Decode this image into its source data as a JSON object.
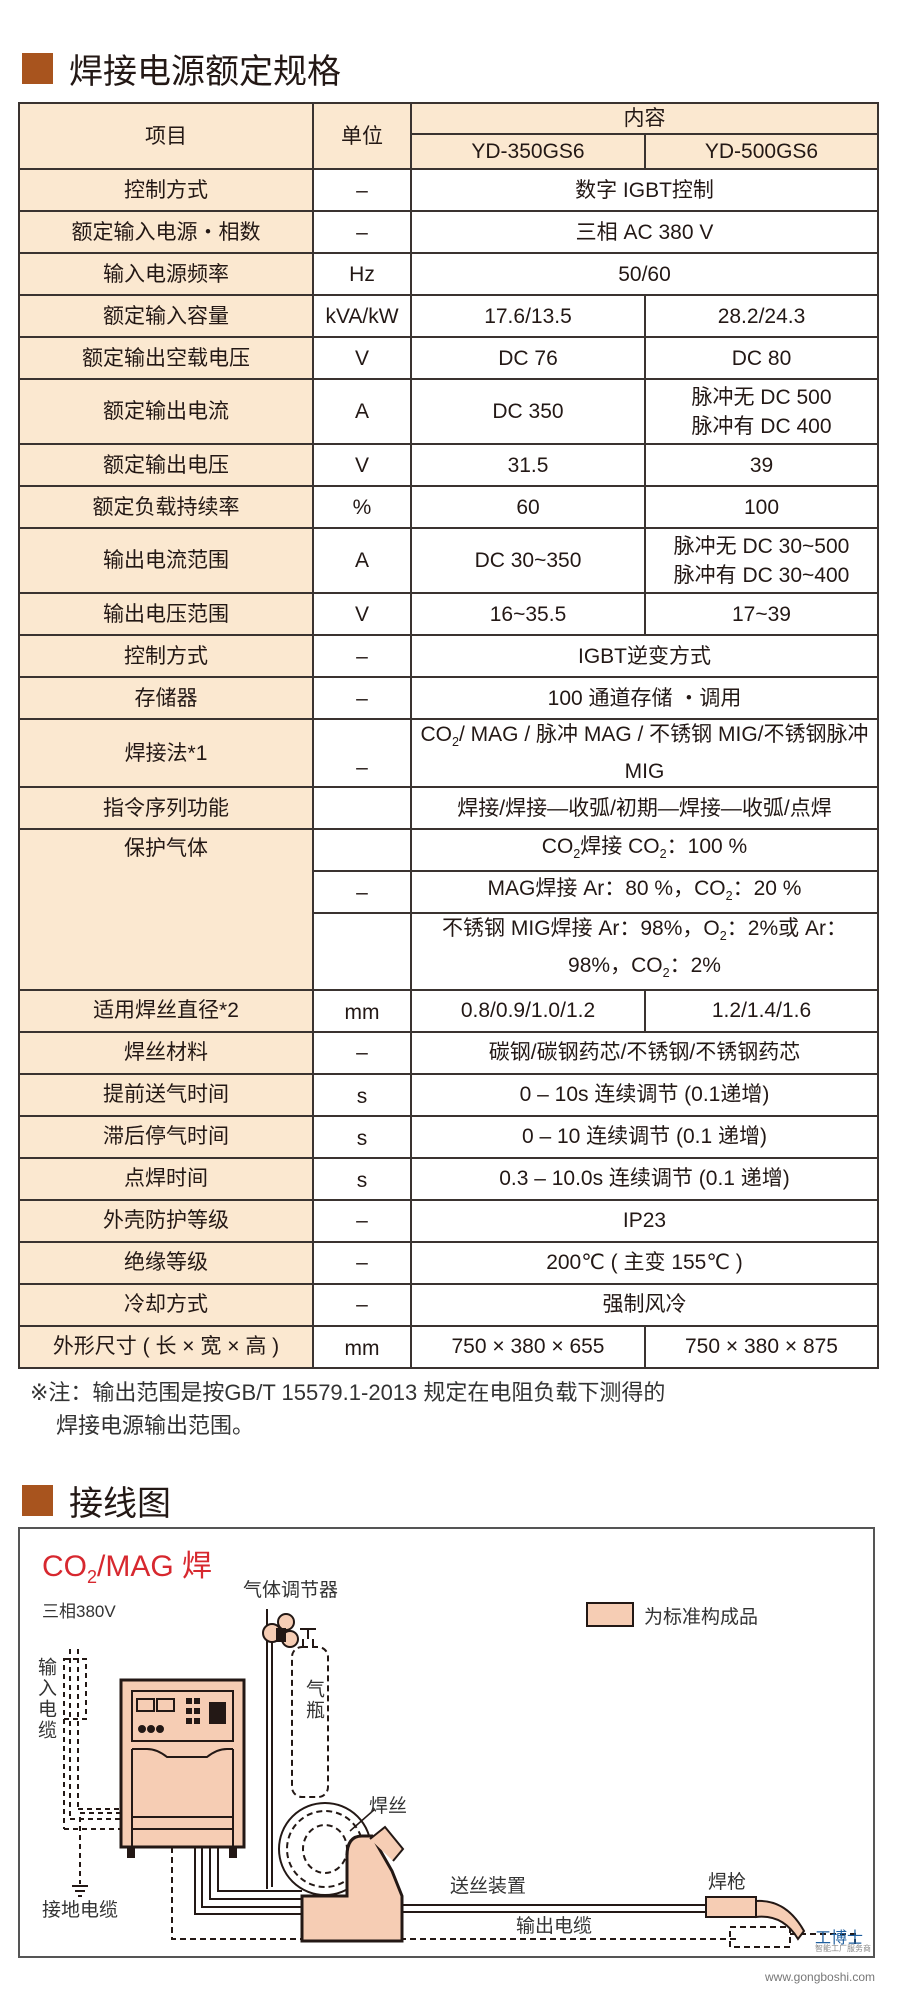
{
  "spec_section": {
    "title": "焊接电源额定规格"
  },
  "table": {
    "header": {
      "item": "项目",
      "unit": "单位",
      "content": "内容",
      "models": [
        "YD-350GS6",
        "YD-500GS6"
      ]
    },
    "rows": [
      {
        "item": "控制方式",
        "unit": "–",
        "value": "数字 IGBT控制"
      },
      {
        "item": "额定输入电源・相数",
        "unit": "–",
        "value": "三相 AC 380 V"
      },
      {
        "item": "输入电源频率",
        "unit": "Hz",
        "value": "50/60"
      },
      {
        "item": "额定输入容量",
        "unit": "kVA/kW",
        "values": [
          "17.6/13.5",
          "28.2/24.3"
        ]
      },
      {
        "item": "额定输出空载电压",
        "unit": "V",
        "values": [
          "DC 76",
          "DC 80"
        ]
      },
      {
        "item": "额定输出电流",
        "unit": "A",
        "values": [
          "DC 350",
          "脉冲无 DC 500",
          "脉冲有 DC 400"
        ]
      },
      {
        "item": "额定输出电压",
        "unit": "V",
        "values": [
          "31.5",
          "39"
        ]
      },
      {
        "item": "额定负载持续率",
        "unit": "%",
        "values": [
          "60",
          "100"
        ]
      },
      {
        "item": "输出电流范围",
        "unit": "A",
        "values": [
          "DC 30~350",
          "脉冲无 DC 30~500",
          "脉冲有 DC 30~400"
        ]
      },
      {
        "item": "输出电压范围",
        "unit": "V",
        "values": [
          "16~35.5",
          "17~39"
        ]
      },
      {
        "item": "控制方式",
        "unit": "–",
        "value": "IGBT逆变方式"
      },
      {
        "item": "存储器",
        "unit": "–",
        "value": "100 通道存储 ・调用"
      },
      {
        "item": "焊接法*1",
        "unit": "–",
        "value_parts": [
          "CO",
          "2",
          "/ MAG / 脉冲 MAG / 不锈钢 MIG/不锈钢脉冲 MIG"
        ]
      },
      {
        "item": "指令序列功能",
        "unit": "",
        "value": "焊接/焊接—收弧/初期—焊接—收弧/点焊"
      },
      {
        "item": "保护气体",
        "units": [
          "",
          "–",
          ""
        ],
        "gas_lines": [
          [
            "CO",
            "2",
            "焊接 CO",
            "2",
            "：100 %"
          ],
          [
            "MAG焊接 Ar：80 %，CO",
            "2",
            "：20 %"
          ],
          [
            "不锈钢 MIG焊接 Ar：98%，O",
            "2",
            "：2%或 Ar：98%，CO",
            "2",
            "：2%"
          ]
        ]
      },
      {
        "item": "适用焊丝直径*2",
        "unit": "mm",
        "values": [
          "0.8/0.9/1.0/1.2",
          "1.2/1.4/1.6"
        ]
      },
      {
        "item": "焊丝材料",
        "unit": "–",
        "value": "碳钢/碳钢药芯/不锈钢/不锈钢药芯"
      },
      {
        "item": "提前送气时间",
        "unit": "s",
        "value": "0 – 10s 连续调节 (0.1递增)"
      },
      {
        "item": "滞后停气时间",
        "unit": "s",
        "value": "0 – 10  连续调节 (0.1 递增)"
      },
      {
        "item": "点焊时间",
        "unit": "s",
        "value": "0.3 – 10.0s 连续调节 (0.1 递增)"
      },
      {
        "item": "外壳防护等级",
        "unit": "–",
        "value": "IP23"
      },
      {
        "item": "绝缘等级",
        "unit": "–",
        "value": "200℃ ( 主变 155℃ )"
      },
      {
        "item": "冷却方式",
        "unit": "–",
        "value": "强制风冷"
      },
      {
        "item": "外形尺寸 ( 长 × 宽 × 高 )",
        "unit": "mm",
        "values": [
          "750 × 380 × 655",
          "750 × 380 × 875"
        ]
      }
    ]
  },
  "note": {
    "line1": "※注：输出范围是按GB/T 15579.1-2013 规定在电阻负载下测得的",
    "line2": "焊接电源输出范围。"
  },
  "wiring_section": {
    "title": "接线图"
  },
  "diagram": {
    "title_parts": [
      "CO",
      "2",
      "/MAG 焊"
    ],
    "title_color": "#d7282f",
    "power": "三相380V",
    "gas_regulator": "气体调节器",
    "legend": "为标准构成品",
    "legend_color": "#f6cdb4",
    "input_cable": "输入电缆",
    "gas_bottle": "气瓶",
    "wire": "焊丝",
    "wire_feeder": "送丝装置",
    "torch": "焊枪",
    "output_cable": "输出电缆",
    "ground_cable": "接地电缆",
    "watermark": "工博士",
    "watermark_sub": "智能工厂服务商",
    "watermark_url": "www.gongboshi.com"
  },
  "colors": {
    "accent": "#a8541e",
    "header_fill": "#fbe8d0"
  }
}
